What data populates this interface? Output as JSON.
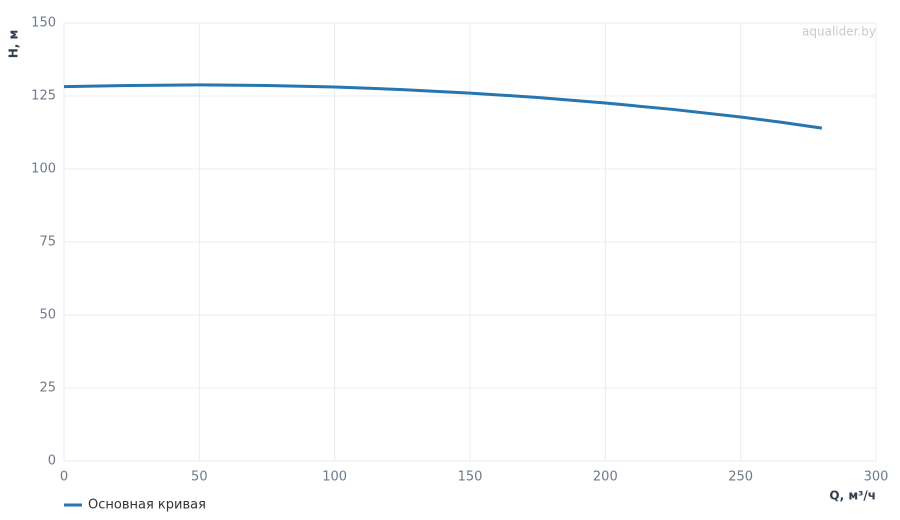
{
  "chart_data": {
    "type": "line",
    "watermark": "aqualider.by",
    "x_label": "Q, м³/ч",
    "y_label": "H, м",
    "x": [
      0,
      25,
      50,
      75,
      100,
      125,
      150,
      175,
      200,
      225,
      250,
      265,
      280
    ],
    "series": [
      {
        "name": "Основная кривая",
        "color": "#2776b0",
        "values": [
          128.2,
          128.6,
          128.8,
          128.6,
          128.1,
          127.2,
          126.0,
          124.5,
          122.6,
          120.4,
          117.8,
          116.0,
          114.0
        ]
      }
    ],
    "xlim": [
      0,
      300
    ],
    "xticks": [
      0,
      50,
      100,
      150,
      200,
      250,
      300
    ],
    "ylim": [
      0,
      150
    ],
    "yticks": [
      0,
      25,
      50,
      75,
      100,
      125,
      150
    ],
    "grid": true,
    "legend": "bottom-left"
  }
}
